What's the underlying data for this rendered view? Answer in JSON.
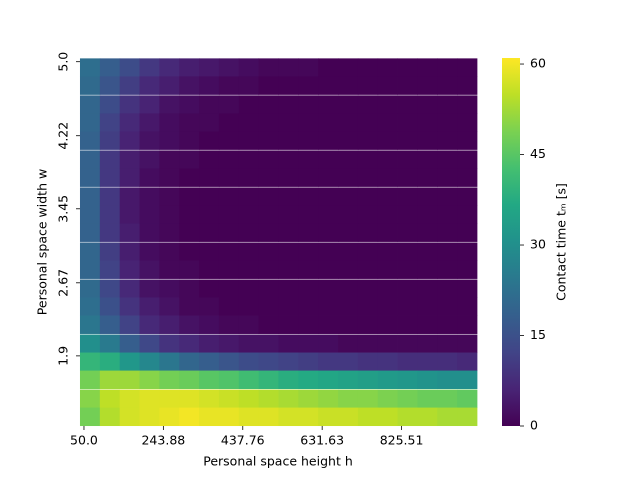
{
  "chart_data": {
    "type": "heatmap",
    "xlabel": "Personal space height h",
    "ylabel": "Personal space width w",
    "colorbar_label": "Contact time tₘ [s]",
    "colormap": "viridis",
    "x": [
      64.5,
      113.0,
      161.5,
      209.9,
      258.4,
      306.9,
      355.3,
      403.8,
      452.3,
      500.7,
      549.2,
      597.7,
      646.1,
      694.6,
      743.1,
      791.5,
      840.0,
      888.5,
      936.9,
      985.4
    ],
    "y": [
      4.94,
      4.75,
      4.55,
      4.36,
      4.17,
      3.97,
      3.78,
      3.58,
      3.39,
      3.2,
      3.0,
      2.81,
      2.61,
      2.42,
      2.23,
      2.03,
      1.84,
      1.65,
      1.45,
      1.26
    ],
    "xlim": [
      40.3,
      1009.7
    ],
    "ylim": [
      1.161,
      5.039
    ],
    "xticks": [
      {
        "value": 50,
        "label": "50.0"
      },
      243.88,
      437.76,
      631.63,
      825.51
    ],
    "yticks": [
      {
        "value": 5,
        "label": "5.0"
      },
      4.22,
      3.45,
      2.67,
      1.9
    ],
    "zlim": [
      0,
      61
    ],
    "zticks": [
      0,
      15,
      30,
      45,
      60
    ],
    "z": [
      [
        22,
        18,
        14,
        10,
        7,
        5,
        4,
        3,
        2,
        1,
        1,
        1,
        0,
        0,
        0,
        0,
        0,
        0,
        0,
        0
      ],
      [
        21,
        16,
        11,
        7,
        5,
        3,
        2,
        1,
        1,
        0,
        0,
        0,
        0,
        0,
        0,
        0,
        0,
        0,
        0,
        0
      ],
      [
        20,
        14,
        9,
        6,
        3,
        2,
        1,
        1,
        0,
        0,
        0,
        0,
        0,
        0,
        0,
        0,
        0,
        0,
        0,
        0
      ],
      [
        20,
        12,
        7,
        4,
        2,
        1,
        1,
        0,
        0,
        0,
        0,
        0,
        0,
        0,
        0,
        0,
        0,
        0,
        0,
        0
      ],
      [
        19,
        11,
        6,
        3,
        2,
        1,
        0,
        0,
        0,
        0,
        0,
        0,
        0,
        0,
        0,
        0,
        0,
        0,
        0,
        0
      ],
      [
        19,
        10,
        5,
        3,
        1,
        1,
        0,
        0,
        0,
        0,
        0,
        0,
        0,
        0,
        0,
        0,
        0,
        0,
        0,
        0
      ],
      [
        19,
        10,
        5,
        2,
        1,
        0,
        0,
        0,
        0,
        0,
        0,
        0,
        0,
        0,
        0,
        0,
        0,
        0,
        0,
        0
      ],
      [
        19,
        10,
        4,
        2,
        1,
        0,
        0,
        0,
        0,
        0,
        0,
        0,
        0,
        0,
        0,
        0,
        0,
        0,
        0,
        0
      ],
      [
        19,
        10,
        4,
        2,
        1,
        0,
        0,
        0,
        0,
        0,
        0,
        0,
        0,
        0,
        0,
        0,
        0,
        0,
        0,
        0
      ],
      [
        19,
        10,
        5,
        2,
        1,
        0,
        0,
        0,
        0,
        0,
        0,
        0,
        0,
        0,
        0,
        0,
        0,
        0,
        0,
        0
      ],
      [
        20,
        11,
        5,
        2,
        1,
        0,
        0,
        0,
        0,
        0,
        0,
        0,
        0,
        0,
        0,
        0,
        0,
        0,
        0,
        0
      ],
      [
        20,
        12,
        6,
        3,
        1,
        1,
        0,
        0,
        0,
        0,
        0,
        0,
        0,
        0,
        0,
        0,
        0,
        0,
        0,
        0
      ],
      [
        21,
        13,
        7,
        3,
        2,
        1,
        0,
        0,
        0,
        0,
        0,
        0,
        0,
        0,
        0,
        0,
        0,
        0,
        0,
        0
      ],
      [
        22,
        15,
        9,
        5,
        3,
        1,
        1,
        0,
        0,
        0,
        0,
        0,
        0,
        0,
        0,
        0,
        0,
        0,
        0,
        0
      ],
      [
        24,
        18,
        12,
        7,
        5,
        3,
        2,
        1,
        1,
        0,
        0,
        0,
        0,
        0,
        0,
        0,
        0,
        0,
        0,
        0
      ],
      [
        30,
        25,
        18,
        13,
        9,
        7,
        5,
        4,
        3,
        3,
        2,
        2,
        2,
        1,
        1,
        1,
        1,
        1,
        1,
        1
      ],
      [
        40,
        38,
        32,
        28,
        24,
        20,
        18,
        16,
        14,
        13,
        12,
        11,
        10,
        10,
        9,
        9,
        8,
        8,
        8,
        7
      ],
      [
        48,
        52,
        52,
        50,
        48,
        47,
        45,
        44,
        42,
        40,
        38,
        37,
        36,
        35,
        34,
        33,
        32,
        31,
        30,
        30
      ],
      [
        50,
        55,
        57,
        58,
        58,
        58,
        57,
        56,
        55,
        54,
        53,
        52,
        51,
        50,
        50,
        49,
        48,
        47,
        47,
        46
      ],
      [
        48,
        54,
        57,
        58,
        59,
        60,
        59,
        59,
        58,
        58,
        57,
        57,
        56,
        56,
        55,
        55,
        54,
        54,
        53,
        53
      ]
    ]
  }
}
